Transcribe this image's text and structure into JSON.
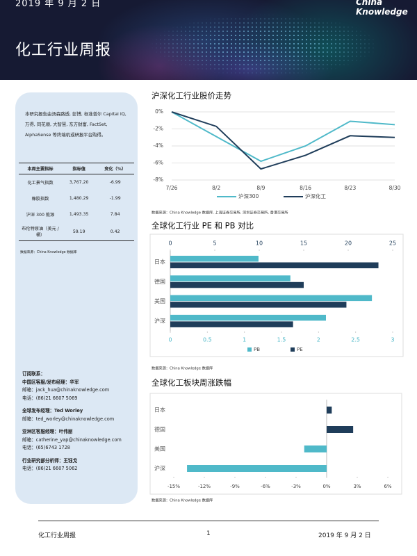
{
  "header": {
    "date": "2019 年 9 月 2 日",
    "title": "化工行业周报",
    "logo": [
      "China",
      "Knowledge"
    ]
  },
  "sidebar": {
    "intro": "本研究报告由汤森路透, 彭博, 标准普尔 Capital IQ, 万得, 同花顺, 大智慧, 东方财富, FactSet, AlphaSense 等终端机或研报平台购得。",
    "table": {
      "header": [
        "本周主要指标",
        "指标值",
        "变化（%）"
      ],
      "rows": [
        [
          "化工景气指数",
          "3,767.20",
          "-6.99"
        ],
        [
          "橡胶指数",
          "1,480.29",
          "-1.99"
        ],
        [
          "沪深 300 能源",
          "1,493.35",
          "7.84"
        ],
        [
          "布伦特原油（美元 / 桶）",
          "59.19",
          "0.42"
        ]
      ]
    },
    "source": "数据来源：China Knowledge 数据库",
    "contacts": [
      {
        "title": "订阅联系：",
        "lines": [
          "中国区客服/发布经理：华军",
          "邮箱：jack_hua@chinaknowledge.com",
          "电话：(86)21 6607 5069"
        ]
      },
      {
        "title": "全球发布经理：Ted Worley",
        "lines": [
          "邮箱：ted_worley@chinaknowledge.com"
        ]
      },
      {
        "title": "亚洲区客服经理：叶伟丽",
        "lines": [
          "邮箱：catherine_yap@chinaknowledge.com",
          "电话：(65)6743 1728"
        ]
      },
      {
        "title": "行业研究部分析师：王钰戈",
        "lines": [
          "电话：(86)21 6607 5062"
        ]
      }
    ]
  },
  "chart_data": [
    {
      "type": "line",
      "title": "沪深化工行业股价走势",
      "categories": [
        "7/26",
        "8/2",
        "8/9",
        "8/16",
        "8/23",
        "8/30"
      ],
      "series": [
        {
          "name": "沪深300",
          "color": "#4fb9c9",
          "values": [
            0,
            -2.9,
            -5.8,
            -4.0,
            -1.1,
            -1.5
          ]
        },
        {
          "name": "沪深化工",
          "color": "#1f3d5a",
          "values": [
            0,
            -1.7,
            -6.7,
            -5.1,
            -2.8,
            -3.0
          ]
        }
      ],
      "ylim": [
        -8,
        0
      ],
      "yticks": [
        {
          "value": 0,
          "label": "0%"
        },
        {
          "value": -2,
          "label": "-2%"
        },
        {
          "value": -4,
          "label": "-4%"
        },
        {
          "value": -6,
          "label": "-6%"
        },
        {
          "value": -8,
          "label": "-8%"
        }
      ],
      "legend": "bottom",
      "source": "数据来源：China Knowledge 数据库, 上海证券交易所, 深圳证券交易所, 香港交易所"
    },
    {
      "type": "hbar",
      "title": "全球化工行业 PE 和 PB 对比",
      "categories": [
        "日本",
        "德国",
        "美国",
        "沪深"
      ],
      "series": [
        {
          "name": "PB",
          "color": "#4fb9c9",
          "axis": "x",
          "values": [
            1.19,
            1.62,
            2.72,
            2.1
          ]
        },
        {
          "name": "PE",
          "color": "#1f3d5a",
          "axis": "x2",
          "values": [
            23.4,
            15,
            19.8,
            13.8
          ]
        }
      ],
      "xlim": [
        0,
        3
      ],
      "xticks": [
        0,
        0.5,
        1,
        1.5,
        2,
        2.5,
        3
      ],
      "x2lim": [
        0,
        25
      ],
      "x2ticks": [
        0,
        5,
        10,
        15,
        20,
        25
      ],
      "legend": "bottom",
      "source": "数据来源：China Knowledge 数据库"
    },
    {
      "type": "hbar",
      "title": "全球化工板块周涨跌幅",
      "categories": [
        "日本",
        "德国",
        "美国",
        "沪深"
      ],
      "values": [
        0.5,
        2.6,
        -2.2,
        -13.7
      ],
      "colors": [
        "#1f3d5a",
        "#1f3d5a",
        "#4fb9c9",
        "#4fb9c9"
      ],
      "xlim": [
        -16.5,
        7.5
      ],
      "xticks": [
        {
          "value": -15,
          "label": "-15%"
        },
        {
          "value": -12,
          "label": "-12%"
        },
        {
          "value": -9,
          "label": "-9%"
        },
        {
          "value": -6,
          "label": "-6%"
        },
        {
          "value": -3,
          "label": "-3%"
        },
        {
          "value": 0,
          "label": "0%"
        },
        {
          "value": 3,
          "label": "3%"
        },
        {
          "value": 6,
          "label": "6%"
        }
      ],
      "source": "数据来源：China Knowledge 数据库"
    }
  ],
  "footer": {
    "left": "化工行业周报",
    "page": "1",
    "right": "2019 年 9 月 2 日"
  }
}
